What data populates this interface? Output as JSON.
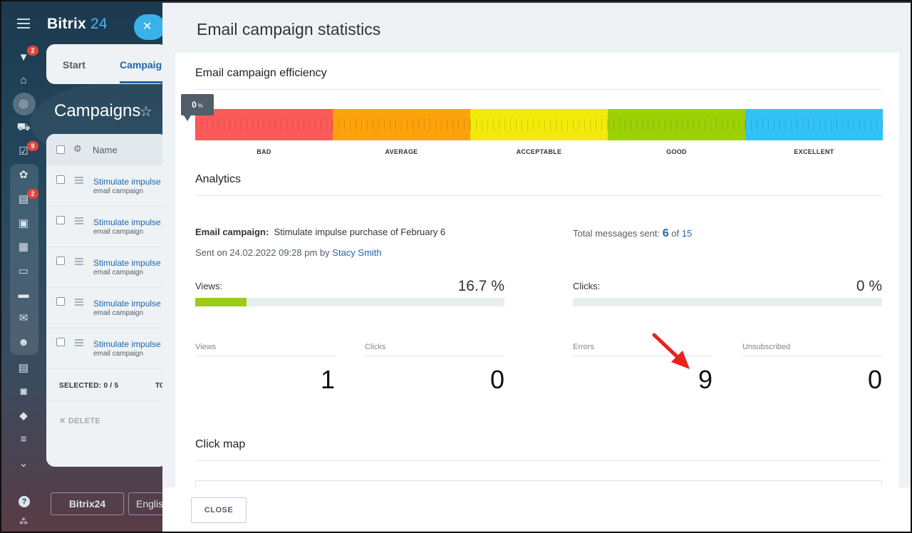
{
  "background_app": {
    "brand": {
      "bitrix": "Bitrix",
      "num": "24"
    },
    "tabs": {
      "start": "Start",
      "campaigns": "Campaign"
    },
    "page_title": "Campaigns",
    "list": {
      "column_name": "Name",
      "rows": [
        {
          "name": "Stimulate impulse",
          "type": "email campaign"
        },
        {
          "name": "Stimulate impulse",
          "type": "email campaign"
        },
        {
          "name": "Stimulate impulse",
          "type": "email campaign"
        },
        {
          "name": "Stimulate impulse",
          "type": "email campaign"
        },
        {
          "name": "Stimulate impulse",
          "type": "email campaign"
        }
      ],
      "selected": "SELECTED: 0 / 5",
      "total_short": "TO",
      "delete_label": "DELETE"
    },
    "nav_badges": [
      "2",
      "9",
      "2"
    ],
    "footer": {
      "brand": "Bitrix24",
      "language": "Englis"
    }
  },
  "panel": {
    "title": "Email campaign statistics",
    "efficiency": {
      "title": "Email campaign efficiency",
      "value": "0",
      "unit": "%",
      "levels": [
        "BAD",
        "AVERAGE",
        "ACCEPTABLE",
        "GOOD",
        "EXCELLENT"
      ],
      "colors": [
        "#fa5a58",
        "#fca20b",
        "#f1ea0a",
        "#9dd106",
        "#33c2f5"
      ]
    },
    "analytics": {
      "title": "Analytics",
      "campaign_label": "Email campaign:",
      "campaign_name": "Stimulate impulse purchase of February 6",
      "sent_on": "Sent on 24.02.2022 09:28 pm by",
      "sent_by": "Stacy Smith",
      "total_label": "Total messages sent:",
      "total_sent": "6",
      "total_of": "of",
      "total_all": "15",
      "views_label": "Views:",
      "views_pct": "16.7 %",
      "views_fraction": 0.167,
      "clicks_label": "Clicks:",
      "clicks_pct": "0 %",
      "clicks_fraction": 0,
      "stats": [
        {
          "label": "Views",
          "value": "1"
        },
        {
          "label": "Clicks",
          "value": "0"
        },
        {
          "label": "Errors",
          "value": "9"
        },
        {
          "label": "Unsubscribed",
          "value": "0"
        }
      ]
    },
    "click_map": {
      "title": "Click map"
    },
    "close_label": "CLOSE"
  }
}
